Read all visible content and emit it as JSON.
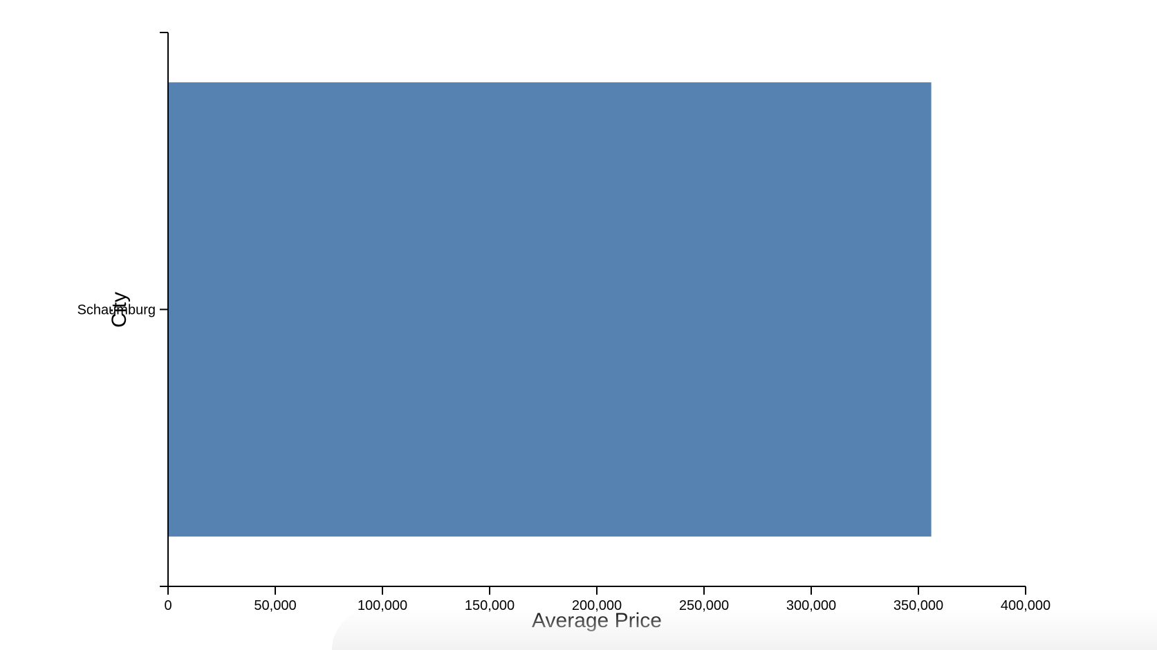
{
  "chart_data": {
    "type": "bar",
    "orientation": "horizontal",
    "categories": [
      "Schaumburg"
    ],
    "values": [
      356000
    ],
    "xlabel": "Average Price",
    "ylabel": "City",
    "xlim": [
      0,
      400000
    ],
    "xticks": [
      0,
      50000,
      100000,
      150000,
      200000,
      250000,
      300000,
      350000,
      400000
    ],
    "xtick_labels": [
      "0",
      "50,000",
      "100,000",
      "150,000",
      "200,000",
      "250,000",
      "300,000",
      "350,000",
      "400,000"
    ],
    "grid": false,
    "legend": "none",
    "bar_color": "#5582b1"
  }
}
